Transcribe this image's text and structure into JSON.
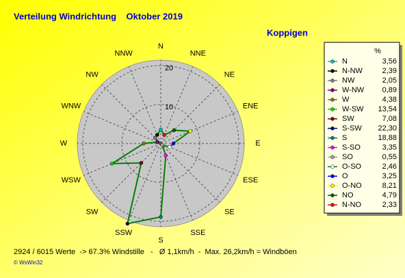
{
  "chart_data": {
    "type": "radar",
    "title": "Verteilung Windrichtung    Oktober 2019",
    "subtitle": "Koppigen",
    "categories": [
      "N",
      "NNE",
      "NE",
      "ENE",
      "E",
      "ESE",
      "SE",
      "SSE",
      "S",
      "SSW",
      "SW",
      "WSW",
      "W",
      "WNW",
      "NW",
      "NNW"
    ],
    "value_direction": "counterclockwise",
    "rlim": [
      0,
      21.4
    ],
    "rticks": [
      10,
      20
    ],
    "grid": true,
    "legend_title": "%",
    "series": [
      {
        "color": "#008000",
        "point_names": [
          "N",
          "N-NW",
          "NW",
          "W-NW",
          "W",
          "W-SW",
          "SW",
          "S-SW",
          "S",
          "S-SO",
          "SO",
          "O-SO",
          "O",
          "O-NO",
          "NO",
          "N-NO"
        ],
        "point_colors": [
          "#00c0c0",
          "#000000",
          "#808080",
          "#800080",
          "#808000",
          "#00e000",
          "#800000",
          "#000080",
          "#008080",
          "#ff00ff",
          "#a0a0a0",
          "#ffffff",
          "#0000ff",
          "#ffff00",
          "#006000",
          "#ff0000"
        ],
        "values": [
          3.56,
          2.39,
          2.05,
          0.89,
          4.38,
          13.54,
          7.08,
          22.3,
          18.88,
          3.35,
          0.55,
          2.46,
          3.25,
          8.21,
          4.79,
          2.33
        ],
        "value_labels": [
          "3,56",
          "2,39",
          "2,05",
          "0,89",
          "4,38",
          "13,54",
          "7,08",
          "22,30",
          "18,88",
          "3,35",
          "0,55",
          "2,46",
          "3,25",
          "8,21",
          "4,79",
          "2,33"
        ]
      }
    ],
    "annotations": [
      "2924 / 6015 Werte  -> 67.3% Windstille   -   Ø 1,1km/h  -  Max. 26,2km/h = Windböen",
      "© WsWin32"
    ]
  }
}
